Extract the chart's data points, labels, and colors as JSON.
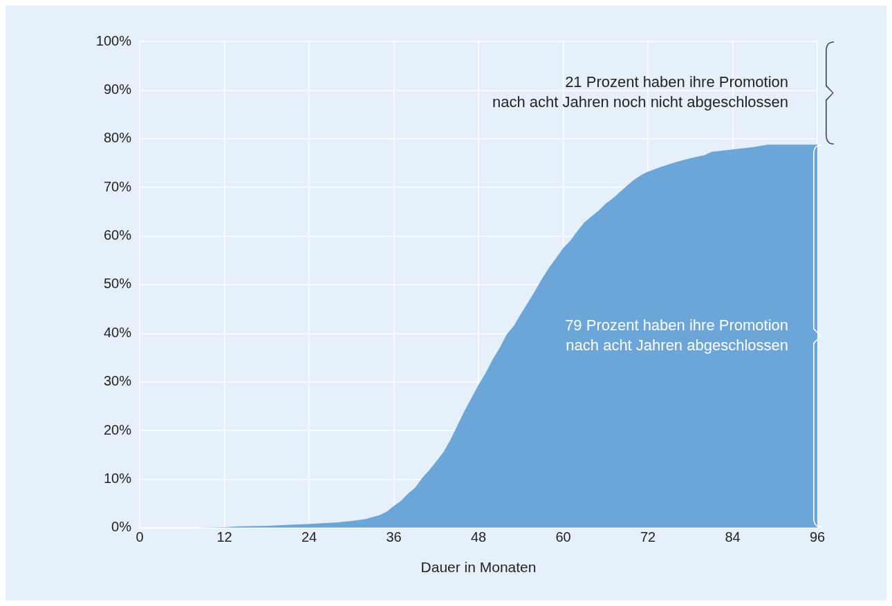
{
  "chart_data": {
    "type": "area",
    "xlabel": "Dauer in Monaten",
    "x": [
      0,
      8,
      12,
      14,
      18,
      24,
      28,
      30,
      32,
      34,
      35,
      36,
      37,
      38,
      39,
      40,
      41,
      42,
      43,
      44,
      45,
      46,
      47,
      48,
      49,
      50,
      51,
      52,
      53,
      54,
      55,
      56,
      57,
      58,
      59,
      60,
      61,
      62,
      63,
      64,
      65,
      66,
      67,
      68,
      69,
      70,
      71,
      72,
      74,
      76,
      78,
      80,
      81,
      84,
      87,
      89,
      96
    ],
    "series": [
      {
        "color": "#6ca5d8",
        "values": [
          0,
          0,
          0.1,
          0.3,
          0.4,
          0.8,
          1.1,
          1.4,
          1.8,
          2.6,
          3.3,
          4.5,
          5.5,
          7,
          8.2,
          10.2,
          11.8,
          13.6,
          15.5,
          18,
          21,
          24,
          26.7,
          29.4,
          31.8,
          34.6,
          37,
          39.8,
          41.5,
          44,
          46.3,
          48.7,
          51.2,
          53.5,
          55.5,
          57.5,
          59,
          61,
          62.8,
          64,
          65.2,
          66.6,
          67.7,
          69,
          70.3,
          71.5,
          72.5,
          73.2,
          74.3,
          75.2,
          76,
          76.6,
          77.3,
          77.8,
          78.3,
          78.8,
          78.8
        ]
      }
    ],
    "xlim": [
      0,
      96
    ],
    "xticks": [
      0,
      12,
      24,
      36,
      48,
      60,
      72,
      84,
      96
    ],
    "ylim": [
      0,
      100
    ],
    "yticks": [
      {
        "value": 0,
        "label": "0%"
      },
      {
        "value": 10,
        "label": "10%"
      },
      {
        "value": 20,
        "label": "20%"
      },
      {
        "value": 30,
        "label": "30%"
      },
      {
        "value": 40,
        "label": "40%"
      },
      {
        "value": 50,
        "label": "50%"
      },
      {
        "value": 60,
        "label": "60%"
      },
      {
        "value": 70,
        "label": "70%"
      },
      {
        "value": 80,
        "label": "80%"
      },
      {
        "value": 90,
        "label": "90%"
      },
      {
        "value": 100,
        "label": "100%"
      }
    ],
    "grid": true,
    "annotations": [
      "21 Prozent haben ihre Promotion\nnach acht Jahren noch nicht abgeschlossen",
      "79 Prozent haben ihre Promotion\nnach acht Jahren abgeschlossen"
    ]
  }
}
